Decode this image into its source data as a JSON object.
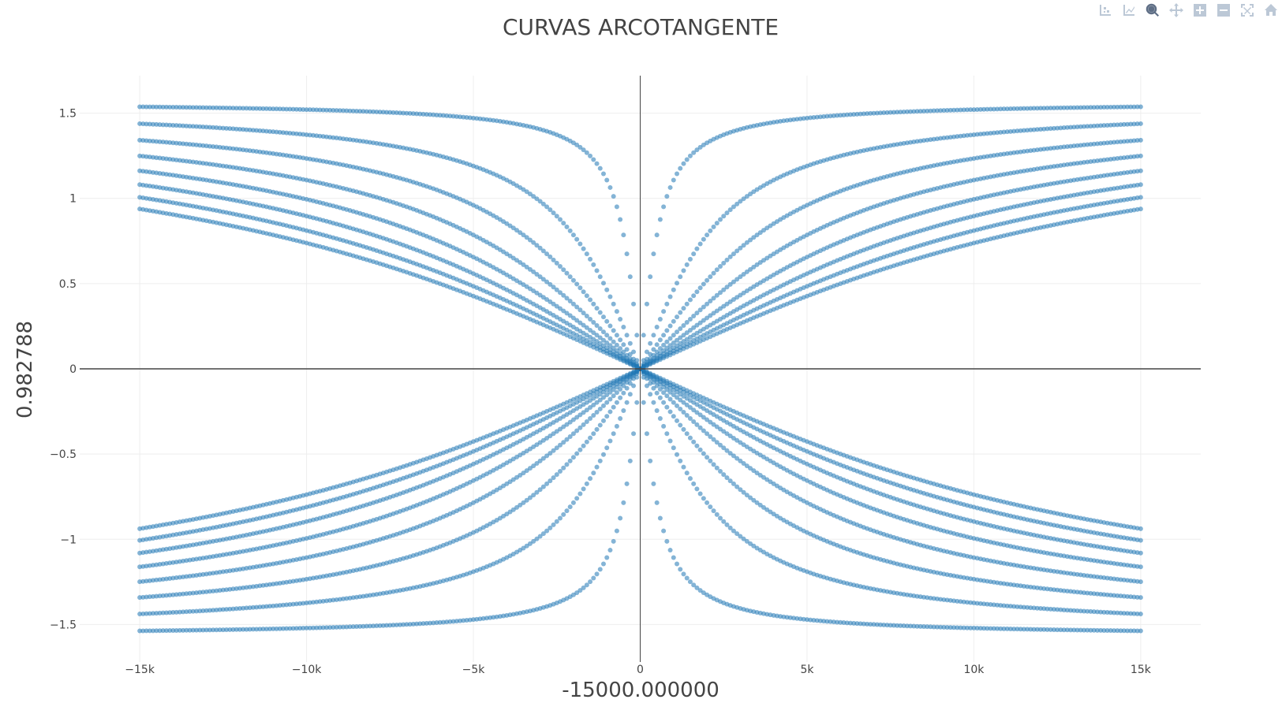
{
  "modebar": {
    "buttons": [
      {
        "name": "compare-data-icon",
        "active": false
      },
      {
        "name": "closest-data-icon",
        "active": false
      },
      {
        "name": "zoom-icon",
        "active": true
      },
      {
        "name": "pan-icon",
        "active": false
      },
      {
        "name": "zoom-in-icon",
        "active": false
      },
      {
        "name": "zoom-out-icon",
        "active": false
      },
      {
        "name": "autoscale-icon",
        "active": false
      },
      {
        "name": "reset-axes-icon",
        "active": false
      }
    ]
  },
  "chart_data": {
    "type": "scatter",
    "title": "CURVAS ARCOTANGENTE",
    "xlabel": "-15000.000000",
    "ylabel": "0.982788",
    "xlim": [
      -16800,
      16800
    ],
    "ylim": [
      -1.72,
      1.72
    ],
    "x_range_of_points": [
      -15000,
      15000
    ],
    "points_per_curve": 301,
    "xticks": [
      -15000,
      -10000,
      -5000,
      0,
      5000,
      10000,
      15000
    ],
    "xtick_labels": [
      "−15k",
      "−10k",
      "−5k",
      "0",
      "5k",
      "10k",
      "15k"
    ],
    "yticks": [
      -1.5,
      -1,
      -0.5,
      0,
      0.5,
      1,
      1.5
    ],
    "ytick_labels": [
      "−1.5",
      "−1",
      "−0.5",
      "0",
      "0.5",
      "1",
      "1.5"
    ],
    "grid": true,
    "zero_lines": true,
    "marker_color": "#1f77b4",
    "marker_opacity": 0.55,
    "series": [
      {
        "formula": "atan(x / 500)"
      },
      {
        "formula": "atan(x / 2000)"
      },
      {
        "formula": "atan(x / 3500)"
      },
      {
        "formula": "atan(x / 5000)"
      },
      {
        "formula": "atan(x / 6500)"
      },
      {
        "formula": "atan(x / 8000)"
      },
      {
        "formula": "atan(x / 9500)"
      },
      {
        "formula": "atan(x / 11000)"
      },
      {
        "formula": "-atan(x / 500)"
      },
      {
        "formula": "-atan(x / 2000)"
      },
      {
        "formula": "-atan(x / 3500)"
      },
      {
        "formula": "-atan(x / 5000)"
      },
      {
        "formula": "-atan(x / 6500)"
      },
      {
        "formula": "-atan(x / 8000)"
      },
      {
        "formula": "-atan(x / 9500)"
      },
      {
        "formula": "-atan(x / 11000)"
      }
    ]
  }
}
